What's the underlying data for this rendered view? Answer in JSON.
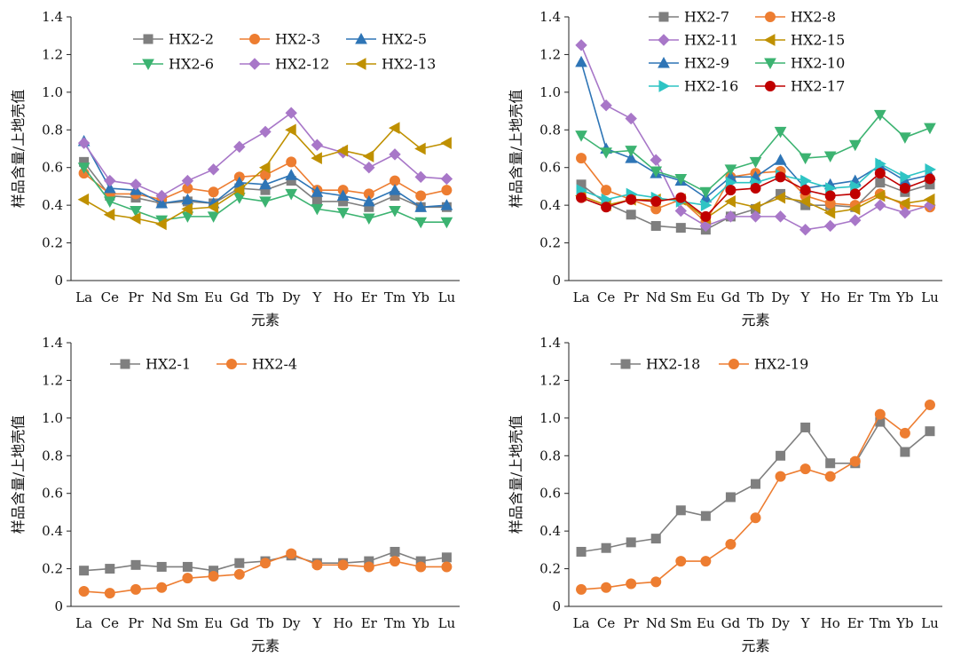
{
  "chart_data": [
    {
      "type": "line",
      "xlabel": "元素",
      "ylabel": "样品含量/上地壳值",
      "ylim": [
        0,
        1.4
      ],
      "yticks": [
        "0",
        "0.2",
        "0.4",
        "0.6",
        "0.8",
        "1.0",
        "1.2",
        "1.4"
      ],
      "categories": [
        "La",
        "Ce",
        "Pr",
        "Nd",
        "Sm",
        "Eu",
        "Gd",
        "Tb",
        "Dy",
        "Y",
        "Ho",
        "Er",
        "Tm",
        "Yb",
        "Lu"
      ],
      "legend_columns": 3,
      "series": [
        {
          "name": "HX2-2",
          "color": "#7f7f7f",
          "marker": "square",
          "values": [
            0.63,
            0.45,
            0.44,
            0.41,
            0.42,
            0.41,
            0.49,
            0.48,
            0.53,
            0.42,
            0.42,
            0.39,
            0.45,
            0.39,
            0.39
          ]
        },
        {
          "name": "HX2-3",
          "color": "#ed7d31",
          "marker": "circle",
          "values": [
            0.57,
            0.46,
            0.46,
            0.43,
            0.49,
            0.47,
            0.55,
            0.56,
            0.63,
            0.48,
            0.48,
            0.46,
            0.53,
            0.45,
            0.48
          ]
        },
        {
          "name": "HX2-5",
          "color": "#2e75b6",
          "marker": "triangle",
          "values": [
            0.74,
            0.49,
            0.48,
            0.41,
            0.43,
            0.41,
            0.52,
            0.51,
            0.56,
            0.47,
            0.45,
            0.42,
            0.48,
            0.39,
            0.4
          ]
        },
        {
          "name": "HX2-6",
          "color": "#3cb371",
          "marker": "tri-down",
          "values": [
            0.6,
            0.42,
            0.37,
            0.32,
            0.34,
            0.34,
            0.44,
            0.42,
            0.46,
            0.38,
            0.36,
            0.33,
            0.37,
            0.31,
            0.31
          ]
        },
        {
          "name": "HX2-12",
          "color": "#a877c8",
          "marker": "diamond",
          "values": [
            0.73,
            0.53,
            0.51,
            0.45,
            0.53,
            0.59,
            0.71,
            0.79,
            0.89,
            0.72,
            0.68,
            0.6,
            0.67,
            0.55,
            0.54
          ]
        },
        {
          "name": "HX2-13",
          "color": "#bf9000",
          "marker": "tri-left",
          "values": [
            0.43,
            0.35,
            0.33,
            0.3,
            0.38,
            0.39,
            0.48,
            0.6,
            0.8,
            0.65,
            0.69,
            0.66,
            0.81,
            0.7,
            0.73
          ]
        }
      ]
    },
    {
      "type": "line",
      "xlabel": "元素",
      "ylabel": "样品含量/上地壳值",
      "ylim": [
        0,
        1.4
      ],
      "yticks": [
        "0",
        "0.2",
        "0.4",
        "0.6",
        "0.8",
        "1.0",
        "1.2",
        "1.4"
      ],
      "categories": [
        "La",
        "Ce",
        "Pr",
        "Nd",
        "Sm",
        "Eu",
        "Gd",
        "Tb",
        "Dy",
        "Y",
        "Ho",
        "Er",
        "Tm",
        "Yb",
        "Lu"
      ],
      "legend_columns": 2,
      "series": [
        {
          "name": "HX2-7",
          "color": "#7f7f7f",
          "marker": "square",
          "values": [
            0.51,
            0.41,
            0.35,
            0.29,
            0.28,
            0.27,
            0.34,
            0.38,
            0.46,
            0.4,
            0.4,
            0.39,
            0.52,
            0.47,
            0.51
          ]
        },
        {
          "name": "HX2-8",
          "color": "#ed7d31",
          "marker": "circle",
          "values": [
            0.65,
            0.48,
            0.43,
            0.38,
            0.43,
            0.31,
            0.55,
            0.57,
            0.58,
            0.45,
            0.41,
            0.4,
            0.46,
            0.4,
            0.39
          ]
        },
        {
          "name": "HX2-11",
          "color": "#a877c8",
          "marker": "diamond",
          "values": [
            1.25,
            0.93,
            0.86,
            0.64,
            0.37,
            0.29,
            0.34,
            0.34,
            0.34,
            0.27,
            0.29,
            0.32,
            0.4,
            0.36,
            0.4
          ]
        },
        {
          "name": "HX2-15",
          "color": "#bf9000",
          "marker": "tri-left",
          "values": [
            0.45,
            0.4,
            0.43,
            0.43,
            0.43,
            0.33,
            0.42,
            0.39,
            0.44,
            0.42,
            0.36,
            0.38,
            0.45,
            0.41,
            0.43
          ]
        },
        {
          "name": "HX2-9",
          "color": "#2e75b6",
          "marker": "triangle",
          "values": [
            1.16,
            0.7,
            0.65,
            0.57,
            0.53,
            0.44,
            0.55,
            0.55,
            0.64,
            0.49,
            0.51,
            0.53,
            0.61,
            0.53,
            0.56
          ]
        },
        {
          "name": "HX2-10",
          "color": "#3cb371",
          "marker": "tri-down",
          "values": [
            0.77,
            0.68,
            0.69,
            0.58,
            0.54,
            0.47,
            0.59,
            0.63,
            0.79,
            0.65,
            0.66,
            0.72,
            0.88,
            0.76,
            0.81
          ]
        },
        {
          "name": "HX2-16",
          "color": "#2ec4c4",
          "marker": "tri-right",
          "values": [
            0.48,
            0.43,
            0.46,
            0.44,
            0.42,
            0.4,
            0.52,
            0.52,
            0.56,
            0.53,
            0.49,
            0.5,
            0.62,
            0.55,
            0.59
          ]
        },
        {
          "name": "HX2-17",
          "color": "#c00000",
          "marker": "circle",
          "values": [
            0.44,
            0.39,
            0.43,
            0.42,
            0.44,
            0.34,
            0.48,
            0.49,
            0.55,
            0.48,
            0.45,
            0.46,
            0.57,
            0.49,
            0.54
          ]
        }
      ]
    },
    {
      "type": "line",
      "xlabel": "元素",
      "ylabel": "样品含量/上地壳值",
      "ylim": [
        0,
        1.4
      ],
      "yticks": [
        "0",
        "0.2",
        "0.4",
        "0.6",
        "0.8",
        "1.0",
        "1.2",
        "1.4"
      ],
      "categories": [
        "La",
        "Ce",
        "Pr",
        "Nd",
        "Sm",
        "Eu",
        "Gd",
        "Tb",
        "Dy",
        "Y",
        "Ho",
        "Er",
        "Tm",
        "Yb",
        "Lu"
      ],
      "legend_columns": 2,
      "series": [
        {
          "name": "HX2-1",
          "color": "#7f7f7f",
          "marker": "square",
          "values": [
            0.19,
            0.2,
            0.22,
            0.21,
            0.21,
            0.19,
            0.23,
            0.24,
            0.27,
            0.23,
            0.23,
            0.24,
            0.29,
            0.24,
            0.26
          ]
        },
        {
          "name": "HX2-4",
          "color": "#ed7d31",
          "marker": "circle",
          "values": [
            0.08,
            0.07,
            0.09,
            0.1,
            0.15,
            0.16,
            0.17,
            0.23,
            0.28,
            0.22,
            0.22,
            0.21,
            0.24,
            0.21,
            0.21
          ]
        }
      ]
    },
    {
      "type": "line",
      "xlabel": "元素",
      "ylabel": "样品含量/上地壳值",
      "ylim": [
        0,
        1.4
      ],
      "yticks": [
        "0",
        "0.2",
        "0.4",
        "0.6",
        "0.8",
        "1.0",
        "1.2",
        "1.4"
      ],
      "categories": [
        "La",
        "Ce",
        "Pr",
        "Nd",
        "Sm",
        "Eu",
        "Gd",
        "Tb",
        "Dy",
        "Y",
        "Ho",
        "Er",
        "Tm",
        "Yb",
        "Lu"
      ],
      "legend_columns": 2,
      "series": [
        {
          "name": "HX2-18",
          "color": "#7f7f7f",
          "marker": "square",
          "values": [
            0.29,
            0.31,
            0.34,
            0.36,
            0.51,
            0.48,
            0.58,
            0.65,
            0.8,
            0.95,
            0.76,
            0.76,
            0.98,
            0.82,
            0.93
          ]
        },
        {
          "name": "HX2-19",
          "color": "#ed7d31",
          "marker": "circle",
          "values": [
            0.09,
            0.1,
            0.12,
            0.13,
            0.24,
            0.24,
            0.33,
            0.47,
            0.69,
            0.73,
            0.69,
            0.77,
            1.02,
            0.92,
            1.07
          ]
        }
      ]
    }
  ]
}
